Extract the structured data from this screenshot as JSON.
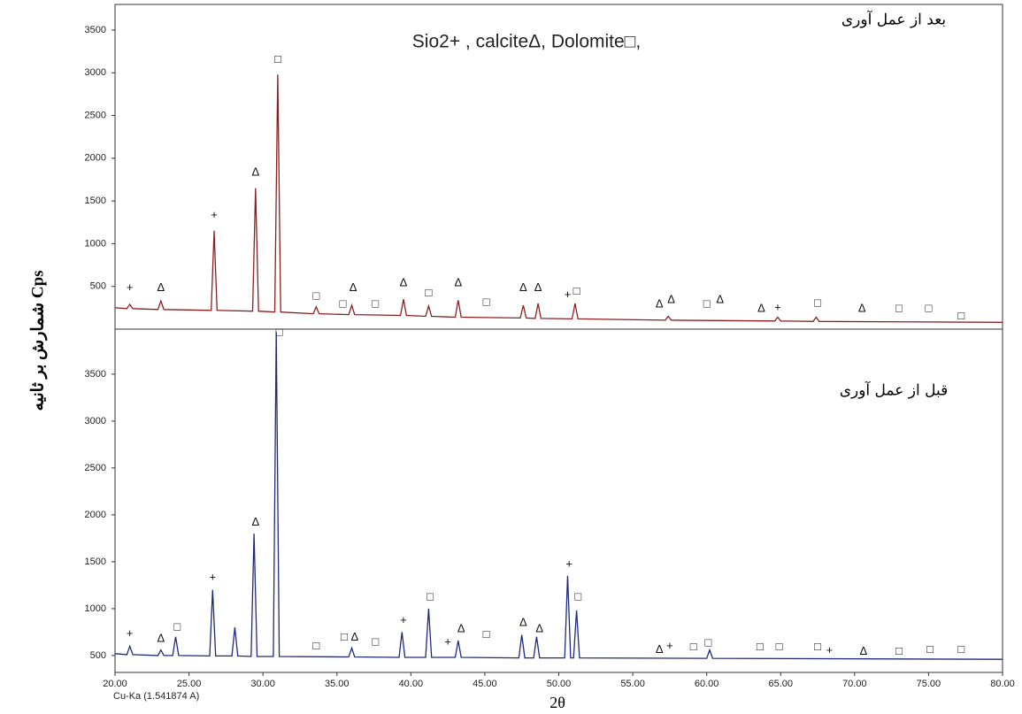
{
  "chart_data": [
    {
      "type": "line",
      "annotation": "Sio2+ , calciteΔ, Dolomite□,",
      "panel_label": "بعد از عمل آوری",
      "ylabel": "شمارش بر ثانیه Cps",
      "xlim": [
        20,
        80
      ],
      "ylim": [
        0,
        3800
      ],
      "yticks": [
        500,
        1000,
        1500,
        2000,
        2500,
        3000,
        3500
      ],
      "series": [
        {
          "color": "#8b1f1f",
          "x": [
            20,
            20.8,
            21,
            21.2,
            22.9,
            23.1,
            23.3,
            26.5,
            26.7,
            26.9,
            29.3,
            29.5,
            29.7,
            30.8,
            31,
            31.2,
            33.4,
            33.6,
            33.8,
            35.8,
            36,
            36.2,
            39.3,
            39.5,
            39.7,
            41,
            41.2,
            41.4,
            43,
            43.2,
            43.4,
            47.4,
            47.6,
            47.8,
            48.4,
            48.6,
            48.8,
            50.9,
            51.1,
            51.3,
            57.2,
            57.4,
            57.6,
            64.6,
            64.8,
            65,
            67.2,
            67.4,
            67.6,
            80
          ],
          "values": [
            250,
            240,
            290,
            240,
            230,
            330,
            230,
            220,
            1150,
            220,
            210,
            1650,
            210,
            200,
            2980,
            200,
            180,
            260,
            180,
            170,
            280,
            170,
            160,
            350,
            160,
            150,
            270,
            150,
            140,
            340,
            140,
            130,
            280,
            130,
            125,
            300,
            125,
            120,
            300,
            120,
            105,
            150,
            105,
            95,
            140,
            95,
            90,
            140,
            90,
            80
          ]
        }
      ],
      "markers": [
        {
          "x": 21,
          "y": 480,
          "label": "+"
        },
        {
          "x": 23.1,
          "y": 480,
          "label": "Δ"
        },
        {
          "x": 26.7,
          "y": 1330,
          "label": "+"
        },
        {
          "x": 29.5,
          "y": 1830,
          "label": "Δ"
        },
        {
          "x": 31,
          "y": 3150,
          "label": "□"
        },
        {
          "x": 33.6,
          "y": 380,
          "label": "□"
        },
        {
          "x": 35.4,
          "y": 290,
          "label": "□"
        },
        {
          "x": 36.1,
          "y": 480,
          "label": "Δ"
        },
        {
          "x": 37.6,
          "y": 290,
          "label": "□"
        },
        {
          "x": 39.5,
          "y": 540,
          "label": "Δ"
        },
        {
          "x": 41.2,
          "y": 420,
          "label": "□"
        },
        {
          "x": 43.2,
          "y": 540,
          "label": "Δ"
        },
        {
          "x": 45.1,
          "y": 310,
          "label": "□"
        },
        {
          "x": 47.6,
          "y": 480,
          "label": "Δ"
        },
        {
          "x": 48.6,
          "y": 480,
          "label": "Δ"
        },
        {
          "x": 50.6,
          "y": 400,
          "label": "+"
        },
        {
          "x": 51.2,
          "y": 440,
          "label": "□"
        },
        {
          "x": 56.8,
          "y": 290,
          "label": "Δ"
        },
        {
          "x": 57.6,
          "y": 340,
          "label": "Δ"
        },
        {
          "x": 60,
          "y": 290,
          "label": "□"
        },
        {
          "x": 60.9,
          "y": 340,
          "label": "Δ"
        },
        {
          "x": 63.7,
          "y": 240,
          "label": "Δ"
        },
        {
          "x": 64.8,
          "y": 250,
          "label": "+"
        },
        {
          "x": 67.5,
          "y": 300,
          "label": "□"
        },
        {
          "x": 70.5,
          "y": 240,
          "label": "Δ"
        },
        {
          "x": 73,
          "y": 240,
          "label": "□"
        },
        {
          "x": 75,
          "y": 240,
          "label": "□"
        },
        {
          "x": 77.2,
          "y": 150,
          "label": "□"
        }
      ]
    },
    {
      "type": "line",
      "panel_label": "قبل از عمل آوری",
      "xlabel": "2θ",
      "annotation": "Cu-Ka (1.541874 A)",
      "xlim": [
        20,
        80
      ],
      "ylim": [
        320,
        3980
      ],
      "yticks": [
        500,
        1000,
        1500,
        2000,
        2500,
        3000,
        3500
      ],
      "xticks": [
        {
          "value": 20,
          "label": "20.00"
        },
        {
          "value": 25,
          "label": "25.00"
        },
        {
          "value": 30,
          "label": "30.00"
        },
        {
          "value": 35,
          "label": "35.00"
        },
        {
          "value": 40,
          "label": "40.00"
        },
        {
          "value": 45,
          "label": "45.00"
        },
        {
          "value": 50,
          "label": "50.00"
        },
        {
          "value": 55,
          "label": "55.00"
        },
        {
          "value": 60,
          "label": "60.00"
        },
        {
          "value": 65,
          "label": "65.00"
        },
        {
          "value": 70,
          "label": "70.00"
        },
        {
          "value": 75,
          "label": "75.00"
        },
        {
          "value": 80,
          "label": "80.00"
        }
      ],
      "series": [
        {
          "color": "#1f2a7a",
          "x": [
            20,
            20.8,
            21,
            21.2,
            22.9,
            23.1,
            23.3,
            23.9,
            24.1,
            24.3,
            26.4,
            26.6,
            26.8,
            27.9,
            28.1,
            28.3,
            29.2,
            29.4,
            29.6,
            30.7,
            30.9,
            31.1,
            35.8,
            36,
            36.2,
            39.2,
            39.4,
            39.6,
            41,
            41.2,
            41.4,
            43,
            43.2,
            43.4,
            47.3,
            47.5,
            47.7,
            48.3,
            48.5,
            48.7,
            50.4,
            50.6,
            50.8,
            51,
            51.2,
            51.4,
            60,
            60.2,
            60.4,
            80
          ],
          "values": [
            520,
            510,
            600,
            510,
            500,
            560,
            500,
            500,
            700,
            500,
            495,
            1200,
            495,
            495,
            800,
            495,
            490,
            1800,
            490,
            490,
            3950,
            490,
            485,
            580,
            485,
            480,
            750,
            480,
            480,
            1000,
            480,
            480,
            660,
            480,
            475,
            720,
            475,
            475,
            700,
            475,
            475,
            1350,
            475,
            475,
            980,
            475,
            470,
            560,
            470,
            460
          ]
        }
      ],
      "markers": [
        {
          "x": 21,
          "y": 730,
          "label": "+"
        },
        {
          "x": 23.1,
          "y": 680,
          "label": "Δ"
        },
        {
          "x": 24.2,
          "y": 800,
          "label": "□"
        },
        {
          "x": 26.6,
          "y": 1330,
          "label": "+"
        },
        {
          "x": 29.5,
          "y": 1920,
          "label": "Δ"
        },
        {
          "x": 31.1,
          "y": 3940,
          "label": "□"
        },
        {
          "x": 33.6,
          "y": 600,
          "label": "□"
        },
        {
          "x": 35.5,
          "y": 690,
          "label": "□"
        },
        {
          "x": 36.2,
          "y": 690,
          "label": "Δ"
        },
        {
          "x": 37.6,
          "y": 640,
          "label": "□"
        },
        {
          "x": 39.5,
          "y": 870,
          "label": "+"
        },
        {
          "x": 41.3,
          "y": 1120,
          "label": "□"
        },
        {
          "x": 42.5,
          "y": 640,
          "label": "+"
        },
        {
          "x": 43.4,
          "y": 780,
          "label": "Δ"
        },
        {
          "x": 45.1,
          "y": 720,
          "label": "□"
        },
        {
          "x": 47.6,
          "y": 850,
          "label": "Δ"
        },
        {
          "x": 48.7,
          "y": 780,
          "label": "Δ"
        },
        {
          "x": 50.7,
          "y": 1470,
          "label": "+"
        },
        {
          "x": 51.3,
          "y": 1120,
          "label": "□"
        },
        {
          "x": 56.8,
          "y": 560,
          "label": "Δ"
        },
        {
          "x": 57.5,
          "y": 600,
          "label": "+"
        },
        {
          "x": 59.1,
          "y": 590,
          "label": "□"
        },
        {
          "x": 60.1,
          "y": 630,
          "label": "□"
        },
        {
          "x": 63.6,
          "y": 590,
          "label": "□"
        },
        {
          "x": 64.9,
          "y": 590,
          "label": "□"
        },
        {
          "x": 67.5,
          "y": 590,
          "label": "□"
        },
        {
          "x": 68.3,
          "y": 550,
          "label": "+"
        },
        {
          "x": 70.6,
          "y": 540,
          "label": "Δ"
        },
        {
          "x": 73,
          "y": 540,
          "label": "□"
        },
        {
          "x": 75.1,
          "y": 560,
          "label": "□"
        },
        {
          "x": 77.2,
          "y": 560,
          "label": "□"
        }
      ]
    }
  ]
}
